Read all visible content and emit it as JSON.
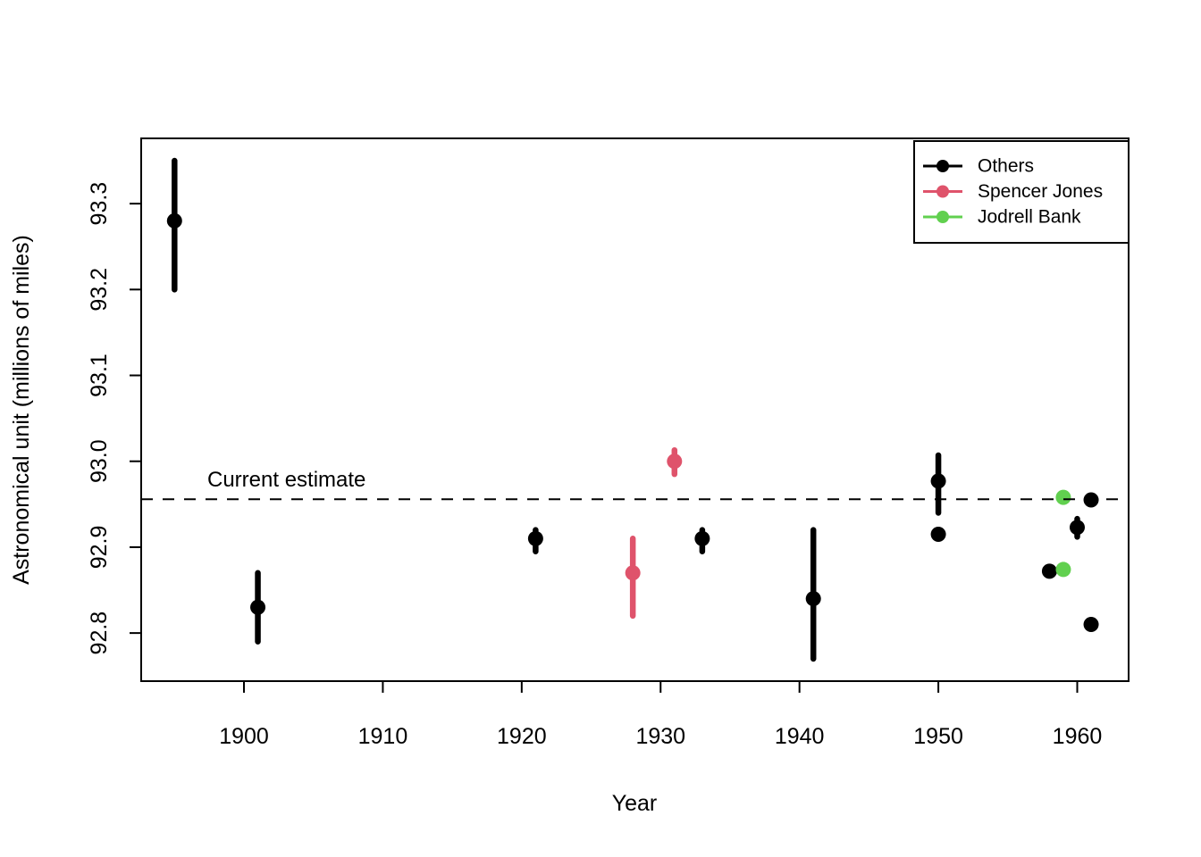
{
  "figure": {
    "background": "#ffffff",
    "foreground": "#000000"
  },
  "chart_data": {
    "type": "scatter",
    "title": "",
    "xlabel": "Year",
    "ylabel": "Astronomical unit (millions of miles)",
    "xlim": [
      1892.6,
      1963.7
    ],
    "ylim": [
      92.744,
      93.376
    ],
    "grid": false,
    "x_ticks": [
      {
        "value": 1900,
        "label": "1900"
      },
      {
        "value": 1910,
        "label": "1910"
      },
      {
        "value": 1920,
        "label": "1920"
      },
      {
        "value": 1930,
        "label": "1930"
      },
      {
        "value": 1940,
        "label": "1940"
      },
      {
        "value": 1950,
        "label": "1950"
      },
      {
        "value": 1960,
        "label": "1960"
      }
    ],
    "y_ticks": [
      {
        "value": 93.3,
        "label": "93.3"
      },
      {
        "value": 93.2,
        "label": "93.2"
      },
      {
        "value": 93.1,
        "label": "93.1"
      },
      {
        "value": 93.0,
        "label": "93.0"
      },
      {
        "value": 92.9,
        "label": "92.9"
      },
      {
        "value": 92.8,
        "label": "92.8"
      }
    ],
    "annotation": {
      "text": "Current estimate",
      "value": 92.9558,
      "line_style": "dashed",
      "color": "#000000"
    },
    "legend": {
      "position": "top-right",
      "entries": [
        {
          "label": "Others",
          "color": "#000000"
        },
        {
          "label": "Spencer Jones",
          "color": "#DF536B"
        },
        {
          "label": "Jodrell Bank",
          "color": "#61D04F"
        }
      ]
    },
    "series": [
      {
        "name": "Others",
        "color": "#000000",
        "points": [
          {
            "year": 1895,
            "value": 93.28,
            "lo": 93.2,
            "hi": 93.35
          },
          {
            "year": 1901,
            "value": 92.83,
            "lo": 92.79,
            "hi": 92.87
          },
          {
            "year": 1921,
            "value": 92.91,
            "lo": 92.895,
            "hi": 92.92
          },
          {
            "year": 1933,
            "value": 92.91,
            "lo": 92.895,
            "hi": 92.92
          },
          {
            "year": 1941,
            "value": 92.84,
            "lo": 92.77,
            "hi": 92.92
          },
          {
            "year": 1950,
            "value": 92.977,
            "lo": 92.94,
            "hi": 93.007
          },
          {
            "year": 1950,
            "value": 92.915,
            "lo": null,
            "hi": null
          },
          {
            "year": 1958,
            "value": 92.872,
            "lo": null,
            "hi": null
          },
          {
            "year": 1960,
            "value": 92.923,
            "lo": 92.912,
            "hi": 92.933
          },
          {
            "year": 1961,
            "value": 92.955,
            "lo": null,
            "hi": null
          },
          {
            "year": 1961,
            "value": 92.81,
            "lo": null,
            "hi": null
          }
        ]
      },
      {
        "name": "Spencer Jones",
        "color": "#DF536B",
        "points": [
          {
            "year": 1928,
            "value": 92.87,
            "lo": 92.82,
            "hi": 92.91
          },
          {
            "year": 1931,
            "value": 93.0,
            "lo": 92.985,
            "hi": 93.013
          }
        ]
      },
      {
        "name": "Jodrell Bank",
        "color": "#61D04F",
        "points": [
          {
            "year": 1959,
            "value": 92.958,
            "lo": null,
            "hi": null
          },
          {
            "year": 1959,
            "value": 92.874,
            "lo": null,
            "hi": null
          }
        ]
      }
    ]
  }
}
